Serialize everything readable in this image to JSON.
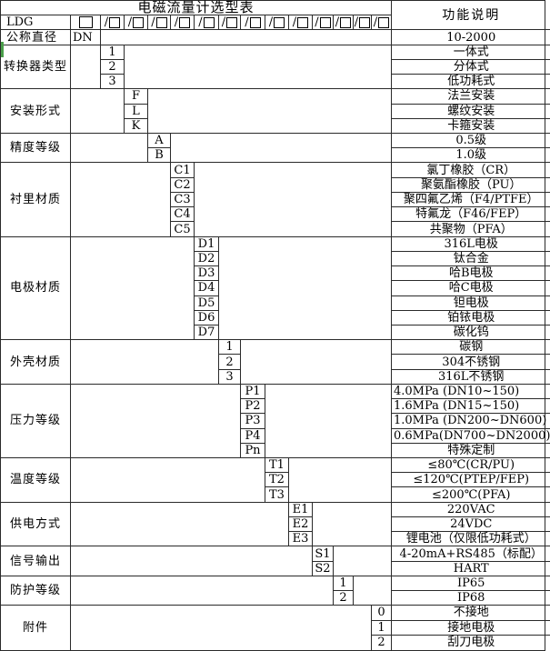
{
  "title": "电磁流量计选型表",
  "right_header": "功能说明",
  "model_row": {
    "prefix": "LDG",
    "box": "□",
    "slot": "/□",
    "slash": "/",
    "slot_count": 13
  },
  "diameter_row": {
    "label": "公称直径",
    "code": "DN",
    "desc": "10-2000"
  },
  "sections": [
    {
      "label": "转换器类型",
      "col": 2,
      "options": [
        {
          "code": "1",
          "desc": "一体式"
        },
        {
          "code": "2",
          "desc": "分体式"
        },
        {
          "code": "3",
          "desc": "低功耗式"
        }
      ]
    },
    {
      "label": "安装形式",
      "col": 3,
      "options": [
        {
          "code": "F",
          "desc": "法兰安装"
        },
        {
          "code": "L",
          "desc": "螺纹安装"
        },
        {
          "code": "K",
          "desc": "卡箍安装"
        }
      ]
    },
    {
      "label": "精度等级",
      "col": 4,
      "options": [
        {
          "code": "A",
          "desc": "0.5级"
        },
        {
          "code": "B",
          "desc": "1.0级"
        }
      ]
    },
    {
      "label": "衬里材质",
      "col": 5,
      "options": [
        {
          "code": "C1",
          "desc": "氯丁橡胶（CR）"
        },
        {
          "code": "C2",
          "desc": "聚氨酯橡胶（PU）"
        },
        {
          "code": "C3",
          "desc": "聚四氟乙烯（F4/PTFE）"
        },
        {
          "code": "C4",
          "desc": "特氟龙（F46/FEP）"
        },
        {
          "code": "C5",
          "desc": "共聚物（PFA）"
        }
      ]
    },
    {
      "label": "电极材质",
      "col": 6,
      "options": [
        {
          "code": "D1",
          "desc": "316L电极"
        },
        {
          "code": "D2",
          "desc": "钛合金"
        },
        {
          "code": "D3",
          "desc": "哈B电极"
        },
        {
          "code": "D4",
          "desc": "哈C电极"
        },
        {
          "code": "D5",
          "desc": "钽电极"
        },
        {
          "code": "D6",
          "desc": "铂铱电极"
        },
        {
          "code": "D7",
          "desc": "碳化钨"
        }
      ]
    },
    {
      "label": "外壳材质",
      "col": 7,
      "options": [
        {
          "code": "1",
          "desc": "碳钢"
        },
        {
          "code": "2",
          "desc": "304不锈钢"
        },
        {
          "code": "3",
          "desc": "316L不锈钢"
        }
      ]
    },
    {
      "label": "压力等级",
      "col": 8,
      "options": [
        {
          "code": "P1",
          "desc": "4.0MPa (DN10~150)",
          "align": "left"
        },
        {
          "code": "P2",
          "desc": "1.6MPa (DN15~150)",
          "align": "left"
        },
        {
          "code": "P3",
          "desc": "1.0MPa (DN200~DN600)",
          "align": "left"
        },
        {
          "code": "P4",
          "desc": "0.6MPa(DN700~DN2000)",
          "align": "left"
        },
        {
          "code": "Pn",
          "desc": "特殊定制"
        }
      ]
    },
    {
      "label": "温度等级",
      "col": 9,
      "options": [
        {
          "code": "T1",
          "desc": "≤80℃(CR/PU)"
        },
        {
          "code": "T2",
          "desc": "≤120℃(PTEP/FEP)"
        },
        {
          "code": "T3",
          "desc": "≤200℃(PFA)"
        }
      ]
    },
    {
      "label": "供电方式",
      "col": 10,
      "options": [
        {
          "code": "E1",
          "desc": "220VAC"
        },
        {
          "code": "E2",
          "desc": "24VDC"
        },
        {
          "code": "E3",
          "desc": "锂电池（仅限低功耗式）"
        }
      ]
    },
    {
      "label": "信号输出",
      "col": 11,
      "options": [
        {
          "code": "S1",
          "desc": "4-20mA+RS485（标配）"
        },
        {
          "code": "S2",
          "desc": "HART"
        }
      ]
    },
    {
      "label": "防护等级",
      "col": 12,
      "options": [
        {
          "code": "1",
          "desc": "IP65"
        },
        {
          "code": "2",
          "desc": "IP68"
        }
      ]
    },
    {
      "label": "附件",
      "col": 14,
      "options": [
        {
          "code": "0",
          "desc": "不接地"
        },
        {
          "code": "1",
          "desc": "接地电极"
        },
        {
          "code": "2",
          "desc": "刮刀电极"
        }
      ]
    }
  ],
  "artifact": {
    "left_edge_mark_color": "#4a9e4a"
  }
}
